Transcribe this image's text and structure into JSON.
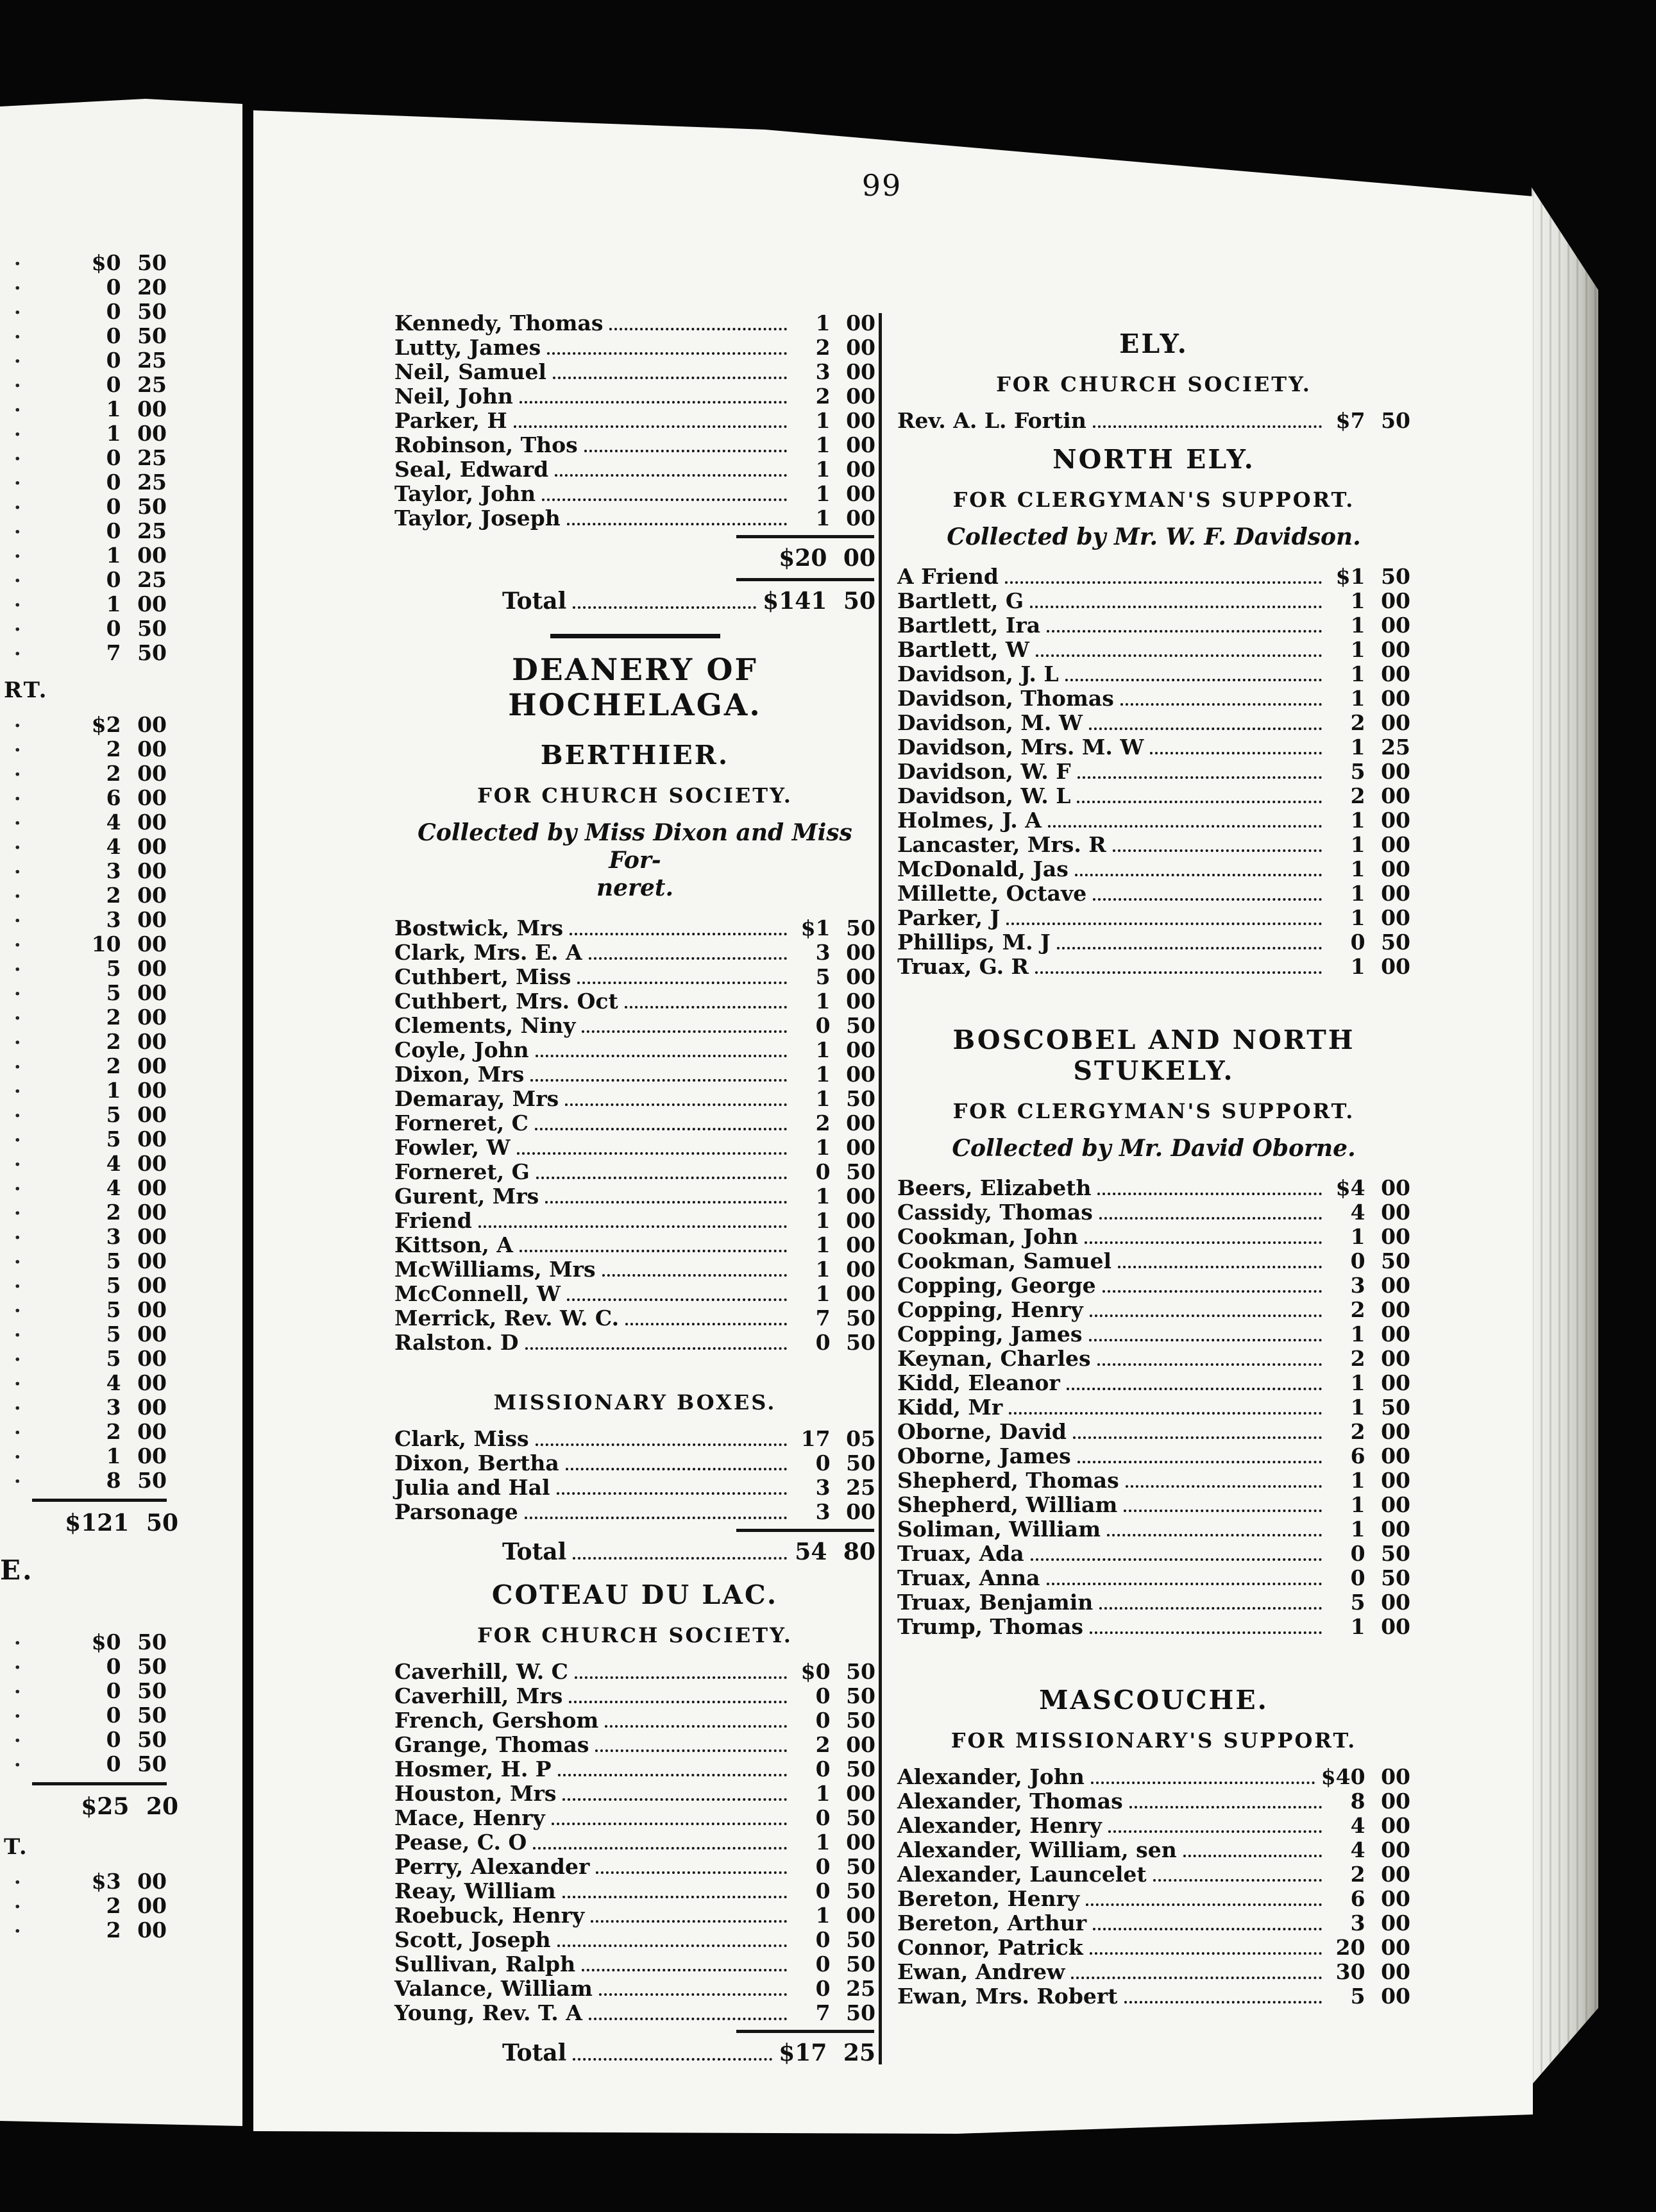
{
  "page_number": "99",
  "left_margin": {
    "section1": [
      "$0 50",
      "0 20",
      "0 50",
      "0 50",
      "0 25",
      "0 25",
      "1 00",
      "1 00",
      "0 25",
      "0 25",
      "0 50",
      "0 25",
      "1 00",
      "0 25",
      "1 00",
      "0 50",
      "7 50"
    ],
    "fragment1": "RT.",
    "section2": [
      "$2 00",
      "2 00",
      "2 00",
      "6 00",
      "4 00",
      "4 00",
      "3 00",
      "2 00",
      "3 00",
      "10 00",
      "5 00",
      "5 00",
      "2 00",
      "2 00",
      "2 00",
      "1 00",
      "5 00",
      "5 00",
      "4 00",
      "4 00",
      "2 00",
      "3 00",
      "5 00",
      "5 00",
      "5 00",
      "5 00",
      "5 00",
      "4 00",
      "3 00",
      "2 00",
      "1 00",
      "8 50"
    ],
    "section2_total": "$121 50",
    "fragment2": "E.",
    "section3": [
      "$0 50",
      "0 50",
      "0 50",
      "0 50",
      "0 50",
      "0 50"
    ],
    "section3_total": "$25 20",
    "fragment3": "T.",
    "section4": [
      "$3 00",
      "2 00",
      "2 00"
    ]
  },
  "left_column": {
    "entries_top": [
      {
        "name": "Kennedy, Thomas",
        "amount": "1 00"
      },
      {
        "name": "Lutty, James",
        "amount": "2 00"
      },
      {
        "name": "Neil, Samuel",
        "amount": "3 00"
      },
      {
        "name": "Neil, John",
        "amount": "2 00"
      },
      {
        "name": "Parker, H",
        "amount": "1 00"
      },
      {
        "name": "Robinson, Thos",
        "amount": "1 00"
      },
      {
        "name": "Seal, Edward",
        "amount": "1 00"
      },
      {
        "name": "Taylor, John",
        "amount": "1 00"
      },
      {
        "name": "Taylor, Joseph",
        "amount": "1 00"
      }
    ],
    "subtotal_top": "$20 00",
    "total_top_label": "Total",
    "total_top_amount": "$141 50",
    "deanery_heading": "DEANERY OF HOCHELAGA.",
    "berthier_heading": "BERTHIER.",
    "berthier_subheading": "FOR CHURCH SOCIETY.",
    "berthier_collected_line1": "Collected by Miss Dixon and Miss For-",
    "berthier_collected_line2": "neret.",
    "berthier_entries": [
      {
        "name": "Bostwick, Mrs",
        "amount": "$1 50"
      },
      {
        "name": "Clark, Mrs. E. A",
        "amount": "3 00"
      },
      {
        "name": "Cuthbert, Miss",
        "amount": "5 00"
      },
      {
        "name": "Cuthbert, Mrs. Oct",
        "amount": "1 00"
      },
      {
        "name": "Clements, Niny",
        "amount": "0 50"
      },
      {
        "name": "Coyle, John",
        "amount": "1 00"
      },
      {
        "name": "Dixon, Mrs",
        "amount": "1 00"
      },
      {
        "name": "Demaray, Mrs",
        "amount": "1 50"
      },
      {
        "name": "Forneret, C",
        "amount": "2 00"
      },
      {
        "name": "Fowler, W",
        "amount": "1 00"
      },
      {
        "name": "Forneret, G",
        "amount": "0 50"
      },
      {
        "name": "Gurent, Mrs",
        "amount": "1 00"
      },
      {
        "name": "Friend",
        "amount": "1 00"
      },
      {
        "name": "Kittson, A",
        "amount": "1 00"
      },
      {
        "name": "McWilliams, Mrs",
        "amount": "1 00"
      },
      {
        "name": "McConnell, W",
        "amount": "1 00"
      },
      {
        "name": "Merrick, Rev. W. C.",
        "amount": "7 50"
      },
      {
        "name": "Ralston. D",
        "amount": "0 50"
      }
    ],
    "missionary_boxes_heading": "MISSIONARY BOXES.",
    "missionary_boxes_entries": [
      {
        "name": "Clark, Miss",
        "amount": "17 05"
      },
      {
        "name": "Dixon, Bertha",
        "amount": "0 50"
      },
      {
        "name": "Julia and Hal",
        "amount": "3 25"
      },
      {
        "name": "Parsonage",
        "amount": "3 00"
      }
    ],
    "berthier_total_label": "Total",
    "berthier_total_amount": "54 80",
    "coteau_heading": "COTEAU DU LAC.",
    "coteau_subheading": "FOR CHURCH SOCIETY.",
    "coteau_entries": [
      {
        "name": "Caverhill, W. C",
        "amount": "$0 50"
      },
      {
        "name": "Caverhill, Mrs",
        "amount": "0 50"
      },
      {
        "name": "French, Gershom",
        "amount": "0 50"
      },
      {
        "name": "Grange, Thomas",
        "amount": "2 00"
      },
      {
        "name": "Hosmer, H. P",
        "amount": "0 50"
      },
      {
        "name": "Houston, Mrs",
        "amount": "1 00"
      },
      {
        "name": "Mace, Henry",
        "amount": "0 50"
      },
      {
        "name": "Pease, C. O",
        "amount": "1 00"
      },
      {
        "name": "Perry, Alexander",
        "amount": "0 50"
      },
      {
        "name": "Reay, William",
        "amount": "0 50"
      },
      {
        "name": "Roebuck, Henry",
        "amount": "1 00"
      },
      {
        "name": "Scott, Joseph",
        "amount": "0 50"
      },
      {
        "name": "Sullivan, Ralph",
        "amount": "0 50"
      },
      {
        "name": "Valance, William",
        "amount": "0 25"
      },
      {
        "name": "Young, Rev. T. A",
        "amount": "7 50"
      }
    ],
    "coteau_total_label": "Total",
    "coteau_total_amount": "$17 25"
  },
  "right_column": {
    "ely_heading": "ELY.",
    "ely_subheading": "FOR CHURCH SOCIETY.",
    "ely_entry": {
      "name": "Rev. A. L. Fortin",
      "amount": "$7 50"
    },
    "north_ely_heading": "NORTH ELY.",
    "north_ely_subheading": "FOR CLERGYMAN'S SUPPORT.",
    "north_ely_collected": "Collected by Mr. W. F. Davidson.",
    "north_ely_entries": [
      {
        "name": "A Friend",
        "amount": "$1 50"
      },
      {
        "name": "Bartlett, G",
        "amount": "1 00"
      },
      {
        "name": "Bartlett, Ira",
        "amount": "1 00"
      },
      {
        "name": "Bartlett, W",
        "amount": "1 00"
      },
      {
        "name": "Davidson, J. L",
        "amount": "1 00"
      },
      {
        "name": "Davidson, Thomas",
        "amount": "1 00"
      },
      {
        "name": "Davidson, M. W",
        "amount": "2 00"
      },
      {
        "name": "Davidson, Mrs. M. W",
        "amount": "1 25"
      },
      {
        "name": "Davidson, W. F",
        "amount": "5 00"
      },
      {
        "name": "Davidson, W. L",
        "amount": "2 00"
      },
      {
        "name": "Holmes, J. A",
        "amount": "1 00"
      },
      {
        "name": "Lancaster, Mrs. R",
        "amount": "1 00"
      },
      {
        "name": "McDonald, Jas",
        "amount": "1 00"
      },
      {
        "name": "Millette, Octave",
        "amount": "1 00"
      },
      {
        "name": "Parker, J",
        "amount": "1 00"
      },
      {
        "name": "Phillips, M. J",
        "amount": "0 50"
      },
      {
        "name": "Truax, G. R",
        "amount": "1 00"
      }
    ],
    "boscobel_heading": "BOSCOBEL AND NORTH STUKELY.",
    "boscobel_subheading": "FOR CLERGYMAN'S SUPPORT.",
    "boscobel_collected": "Collected by Mr. David Oborne.",
    "boscobel_entries": [
      {
        "name": "Beers, Elizabeth",
        "amount": "$4 00"
      },
      {
        "name": "Cassidy, Thomas",
        "amount": "4 00"
      },
      {
        "name": "Cookman, John",
        "amount": "1 00"
      },
      {
        "name": "Cookman, Samuel",
        "amount": "0 50"
      },
      {
        "name": "Copping, George",
        "amount": "3 00"
      },
      {
        "name": "Copping, Henry",
        "amount": "2 00"
      },
      {
        "name": "Copping, James",
        "amount": "1 00"
      },
      {
        "name": "Keynan, Charles",
        "amount": "2 00"
      },
      {
        "name": "Kidd, Eleanor",
        "amount": "1 00"
      },
      {
        "name": "Kidd, Mr",
        "amount": "1 50"
      },
      {
        "name": "Oborne, David",
        "amount": "2 00"
      },
      {
        "name": "Oborne, James",
        "amount": "6 00"
      },
      {
        "name": "Shepherd, Thomas",
        "amount": "1 00"
      },
      {
        "name": "Shepherd, William",
        "amount": "1 00"
      },
      {
        "name": "Soliman, William",
        "amount": "1 00"
      },
      {
        "name": "Truax, Ada",
        "amount": "0 50"
      },
      {
        "name": "Truax, Anna",
        "amount": "0 50"
      },
      {
        "name": "Truax, Benjamin",
        "amount": "5 00"
      },
      {
        "name": "Trump, Thomas",
        "amount": "1 00"
      }
    ],
    "mascouche_heading": "MASCOUCHE.",
    "mascouche_subheading": "FOR MISSIONARY'S SUPPORT.",
    "mascouche_entries": [
      {
        "name": "Alexander, John",
        "amount": "$40 00"
      },
      {
        "name": "Alexander, Thomas",
        "amount": "8 00"
      },
      {
        "name": "Alexander, Henry",
        "amount": "4 00"
      },
      {
        "name": "Alexander, William, sen",
        "amount": "4 00"
      },
      {
        "name": "Alexander, Launcelet",
        "amount": "2 00"
      },
      {
        "name": "Bereton, Henry",
        "amount": "6 00"
      },
      {
        "name": "Bereton, Arthur",
        "amount": "3 00"
      },
      {
        "name": "Connor, Patrick",
        "amount": "20 00"
      },
      {
        "name": "Ewan, Andrew",
        "amount": "30 00"
      },
      {
        "name": "Ewan, Mrs. Robert",
        "amount": "5 00"
      }
    ]
  }
}
